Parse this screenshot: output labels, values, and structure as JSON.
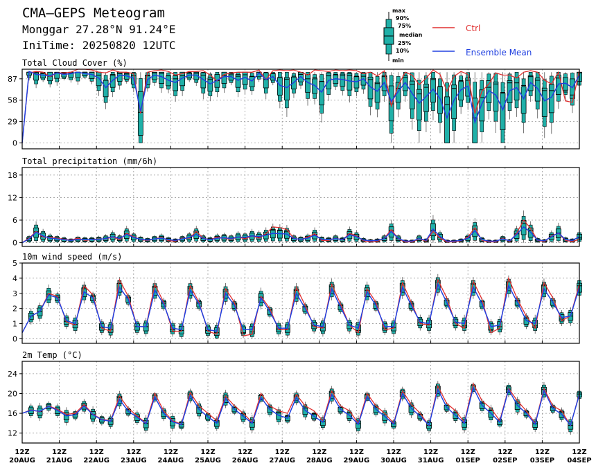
{
  "header": {
    "title": "CMA—GEPS Meteogram",
    "location": "Monggar 27.28°N 91.24°E",
    "init": "IniTime: 20250820 12UTC"
  },
  "legend": {
    "box_labels": [
      "max",
      "90%",
      "75%",
      "median",
      "25%",
      "10%",
      "min"
    ],
    "ctrl_label": "Ctrl",
    "mean_label": "Ensemble Mean",
    "ctrl_color": "#e03030",
    "mean_color": "#2040e0",
    "box_color": "#20b0a8"
  },
  "x_ticks": [
    [
      "12Z",
      "20AUG"
    ],
    [
      "12Z",
      "21AUG"
    ],
    [
      "12Z",
      "22AUG"
    ],
    [
      "12Z",
      "23AUG"
    ],
    [
      "12Z",
      "24AUG"
    ],
    [
      "12Z",
      "25AUG"
    ],
    [
      "12Z",
      "26AUG"
    ],
    [
      "12Z",
      "27AUG"
    ],
    [
      "12Z",
      "28AUG"
    ],
    [
      "12Z",
      "29AUG"
    ],
    [
      "12Z",
      "30AUG"
    ],
    [
      "12Z",
      "31AUG"
    ],
    [
      "12Z",
      "01SEP"
    ],
    [
      "12Z",
      "02SEP"
    ],
    [
      "12Z",
      "03SEP"
    ],
    [
      "12Z",
      "04SEP"
    ]
  ],
  "chart_data": [
    {
      "type": "box",
      "title": "Total Cloud Cover (%)",
      "ylim": [
        -8,
        100
      ],
      "yticks": [
        0,
        29,
        58,
        87
      ],
      "grid": true,
      "ctrl": [
        0,
        95,
        97,
        96,
        90,
        95,
        95,
        96,
        100,
        100,
        99,
        96,
        95,
        99,
        96,
        96,
        94,
        40,
        96,
        98,
        99,
        97,
        92,
        94,
        97,
        97,
        98,
        92,
        84,
        93,
        95,
        96,
        96,
        96,
        99,
        86,
        98,
        99,
        98,
        99,
        96,
        92,
        99,
        98,
        97,
        99,
        98,
        99,
        98,
        94,
        96,
        91,
        98,
        50,
        78,
        96,
        92,
        79,
        88,
        99,
        93,
        70,
        90,
        97,
        93,
        40,
        70,
        80,
        95,
        92,
        92,
        88,
        96,
        98,
        96,
        85,
        80,
        96,
        57,
        55,
        98
      ],
      "mean": [
        0,
        97,
        93,
        92,
        91,
        95,
        93,
        94,
        96,
        94,
        93,
        88,
        75,
        85,
        92,
        91,
        88,
        43,
        86,
        92,
        90,
        85,
        82,
        88,
        92,
        92,
        86,
        80,
        85,
        90,
        90,
        85,
        89,
        84,
        95,
        86,
        90,
        78,
        75,
        82,
        90,
        82,
        78,
        69,
        85,
        87,
        86,
        84,
        83,
        87,
        76,
        70,
        82,
        56,
        70,
        82,
        67,
        54,
        63,
        73,
        60,
        34,
        58,
        72,
        77,
        28,
        53,
        71,
        65,
        45,
        71,
        75,
        60,
        82,
        74,
        57,
        62,
        80,
        81,
        75,
        92
      ],
      "boxes": "auto"
    },
    {
      "type": "box",
      "title": "Total precipitation (mm/6h)",
      "ylim": [
        -1,
        20
      ],
      "yticks": [
        0,
        6,
        12,
        18
      ],
      "grid": true,
      "ctrl": [
        0,
        1.2,
        3,
        1.5,
        1.4,
        1.2,
        0.9,
        0.7,
        1.2,
        0.6,
        0.8,
        1.0,
        1.0,
        1.5,
        0.8,
        2.5,
        1.6,
        0.8,
        0.6,
        1.0,
        1.4,
        0.5,
        0.4,
        1.2,
        1.2,
        3.0,
        1.2,
        0.8,
        1.5,
        1.2,
        0.9,
        1.5,
        1.0,
        1.8,
        1.2,
        2.4,
        4.2,
        4.0,
        3.5,
        1.2,
        0.8,
        1.5,
        2.4,
        0.6,
        0.6,
        1.2,
        0.7,
        2.5,
        1.8,
        0.5,
        0.2,
        0.3,
        1.2,
        3.5,
        1.0,
        0.2,
        0.2,
        1.0,
        0.4,
        3.0,
        1.2,
        0.2,
        0.2,
        0.5,
        1.5,
        4.0,
        0.6,
        0.2,
        0.2,
        1.2,
        0.3,
        2.5,
        6.0,
        3.8,
        0.6,
        0.3,
        1.8,
        2.5,
        0.6,
        0.3,
        0.9
      ],
      "mean": [
        0,
        1.0,
        2.8,
        1.8,
        1.2,
        1.0,
        0.8,
        0.6,
        0.9,
        0.8,
        0.8,
        0.9,
        1.1,
        1.6,
        1.1,
        2.2,
        1.4,
        0.9,
        0.7,
        1.0,
        1.2,
        0.8,
        0.6,
        1.0,
        1.4,
        2.2,
        1.1,
        0.8,
        1.2,
        1.3,
        1.1,
        1.5,
        1.4,
        1.8,
        1.6,
        2.0,
        2.5,
        2.4,
        2.3,
        1.1,
        0.9,
        1.2,
        2.0,
        0.9,
        0.8,
        1.1,
        0.8,
        2.1,
        1.6,
        0.7,
        0.5,
        0.6,
        1.1,
        3.0,
        1.1,
        0.4,
        0.4,
        1.1,
        0.6,
        3.6,
        1.6,
        0.4,
        0.4,
        0.6,
        1.2,
        3.2,
        0.8,
        0.4,
        0.4,
        1.0,
        0.5,
        2.2,
        4.2,
        2.8,
        0.7,
        0.5,
        1.6,
        2.6,
        0.8,
        0.6,
        1.6
      ],
      "boxes": "auto"
    },
    {
      "type": "box",
      "title": "10m wind speed (m/s)",
      "ylim": [
        -0.3,
        5
      ],
      "yticks": [
        0,
        1,
        2,
        3,
        4,
        5
      ],
      "grid": true,
      "ctrl": [
        0.4,
        1.5,
        1.8,
        3.0,
        2.8,
        1.1,
        0.9,
        3.5,
        2.9,
        0.7,
        0.5,
        3.9,
        2.8,
        0.8,
        0.8,
        3.6,
        2.4,
        0.5,
        0.5,
        3.5,
        2.4,
        0.5,
        0.3,
        3.3,
        2.4,
        0.2,
        0.3,
        2.8,
        2.0,
        0.6,
        0.6,
        3.4,
        2.2,
        0.8,
        0.7,
        3.6,
        2.3,
        0.9,
        0.4,
        3.3,
        2.4,
        0.6,
        0.7,
        3.7,
        2.4,
        1.0,
        0.9,
        3.9,
        2.7,
        1.0,
        0.7,
        3.8,
        2.6,
        0.4,
        0.7,
        4.0,
        2.6,
        1.5,
        0.7,
        3.7,
        2.7,
        1.2,
        1.5,
        3.6
      ],
      "mean": [
        0.4,
        1.5,
        1.8,
        2.9,
        2.7,
        1.2,
        1.0,
        3.1,
        2.7,
        0.8,
        0.7,
        3.4,
        2.6,
        0.8,
        0.8,
        3.2,
        2.3,
        0.7,
        0.6,
        3.2,
        2.3,
        0.6,
        0.5,
        3.0,
        2.2,
        0.6,
        0.6,
        2.7,
        1.8,
        0.7,
        0.7,
        3.0,
        2.0,
        0.9,
        0.8,
        3.3,
        2.1,
        0.9,
        0.7,
        3.1,
        2.2,
        0.8,
        0.8,
        3.4,
        2.2,
        1.1,
        1.0,
        3.6,
        2.4,
        1.1,
        1.0,
        3.4,
        2.3,
        0.8,
        0.9,
        3.5,
        2.4,
        1.2,
        1.0,
        3.3,
        2.4,
        1.4,
        1.5,
        3.4
      ],
      "boxes": "auto"
    },
    {
      "type": "box",
      "title": "2m Temp (°C)",
      "ylim": [
        10,
        26.5
      ],
      "yticks": [
        12,
        16,
        20,
        24
      ],
      "grid": true,
      "ctrl": [
        16,
        16.7,
        16.3,
        17.5,
        16.8,
        15.8,
        16.0,
        17.8,
        15.8,
        14.8,
        14.5,
        19.5,
        17.0,
        15.5,
        14.0,
        20.0,
        16.5,
        14.5,
        13.8,
        20.2,
        17.5,
        16.0,
        14.5,
        19.5,
        17.5,
        16.0,
        14.2,
        20.0,
        17.5,
        16.5,
        16.0,
        19.8,
        17.5,
        16.5,
        14.5,
        20.5,
        17.5,
        16.5,
        14.0,
        20.0,
        17.5,
        16.0,
        14.0,
        20.5,
        17.8,
        16.0,
        13.5,
        21.5,
        18.0,
        16.5,
        14.2,
        22.0,
        18.5,
        17.0,
        14.5,
        21.0,
        18.5,
        16.5,
        14.0,
        21.0,
        17.5,
        16.5,
        13.5,
        20.0
      ],
      "mean": [
        16,
        16.6,
        16.4,
        17.4,
        16.6,
        15.5,
        15.7,
        17.5,
        15.7,
        14.7,
        14.4,
        18.8,
        16.4,
        15.2,
        13.9,
        19.3,
        16.0,
        14.3,
        13.7,
        19.6,
        16.8,
        15.3,
        14.0,
        19.0,
        16.8,
        15.4,
        14.0,
        19.2,
        16.8,
        15.6,
        15.0,
        19.2,
        16.6,
        15.4,
        14.2,
        19.8,
        16.8,
        15.6,
        13.8,
        19.4,
        16.8,
        15.4,
        13.8,
        20.0,
        17.0,
        15.4,
        13.6,
        20.8,
        17.2,
        15.6,
        14.0,
        21.2,
        17.6,
        16.0,
        14.2,
        20.8,
        17.6,
        16.0,
        13.8,
        20.6,
        17.0,
        15.8,
        13.6,
        19.8
      ],
      "boxes": "auto"
    }
  ]
}
